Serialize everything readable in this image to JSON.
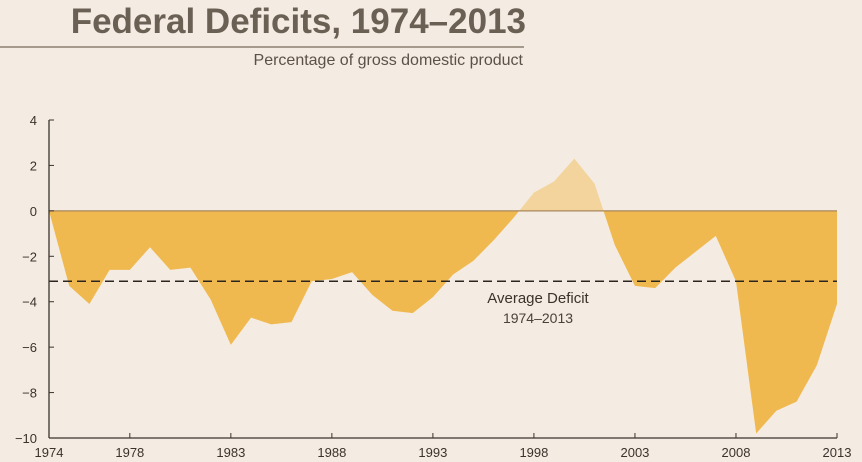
{
  "header": {
    "title": "Federal Deficits, 1974–2013",
    "subtitle": "Percentage of gross domestic product"
  },
  "colors": {
    "deficit": "#f0b94f",
    "surplus": "#f2d49c",
    "background": "#f4ebe2",
    "axis": "#3a332c"
  },
  "chart_data": {
    "type": "area",
    "title": "Federal Deficits, 1974–2013",
    "subtitle": "Percentage of gross domestic product",
    "xlabel": "",
    "ylabel": "",
    "xlim": [
      1974,
      2013
    ],
    "ylim": [
      -10,
      4
    ],
    "x_ticks": [
      "1974",
      "1978",
      "1983",
      "1988",
      "1993",
      "1998",
      "2003",
      "2008",
      "2013"
    ],
    "y_ticks": [
      "4",
      "2",
      "0",
      "−2",
      "−4",
      "−6",
      "−8",
      "−10"
    ],
    "x": [
      1974,
      1975,
      1976,
      1977,
      1978,
      1979,
      1980,
      1981,
      1982,
      1983,
      1984,
      1985,
      1986,
      1987,
      1988,
      1989,
      1990,
      1991,
      1992,
      1993,
      1994,
      1995,
      1996,
      1997,
      1998,
      1999,
      2000,
      2001,
      2002,
      2003,
      2004,
      2005,
      2006,
      2007,
      2008,
      2009,
      2010,
      2011,
      2012,
      2013
    ],
    "values": [
      -0.0,
      -3.3,
      -4.1,
      -2.6,
      -2.6,
      -1.6,
      -2.6,
      -2.5,
      -3.9,
      -5.9,
      -4.7,
      -5.0,
      -4.9,
      -3.1,
      -3.0,
      -2.7,
      -3.7,
      -4.4,
      -4.5,
      -3.8,
      -2.8,
      -2.2,
      -1.3,
      -0.3,
      0.8,
      1.3,
      2.3,
      1.2,
      -1.5,
      -3.3,
      -3.4,
      -2.5,
      -1.8,
      -1.1,
      -3.1,
      -9.8,
      -8.8,
      -8.4,
      -6.8,
      -4.1
    ],
    "average": {
      "value": -3.1,
      "label": "Average Deficit",
      "sublabel": "1974–2013",
      "style": "dashed"
    },
    "grid": false,
    "legend": "none"
  }
}
